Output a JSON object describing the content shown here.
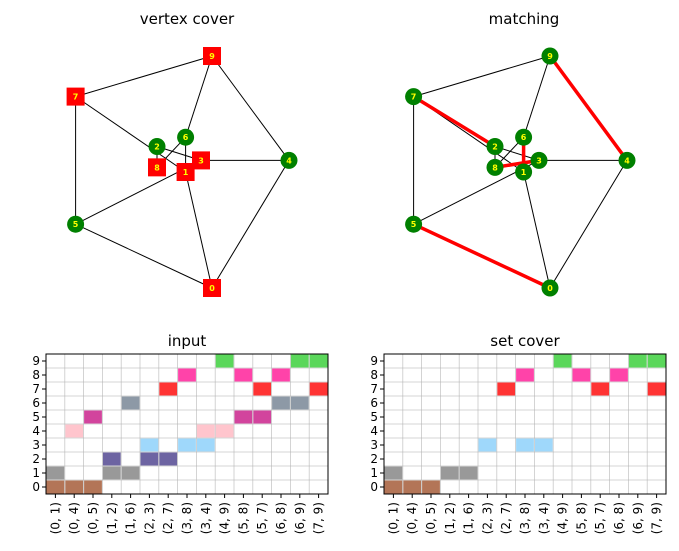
{
  "chart_data": [
    {
      "type": "graph",
      "title": "vertex cover",
      "nodes": [
        {
          "id": "0",
          "x": 0.0,
          "y": -1.0,
          "in_cover": true
        },
        {
          "id": "1",
          "x": -0.12,
          "y": 0.0,
          "in_cover": true
        },
        {
          "id": "2",
          "x": -0.25,
          "y": 0.22,
          "in_cover": false
        },
        {
          "id": "3",
          "x": -0.05,
          "y": 0.1,
          "in_cover": true
        },
        {
          "id": "4",
          "x": 0.35,
          "y": 0.1,
          "in_cover": false
        },
        {
          "id": "5",
          "x": -0.62,
          "y": -0.45,
          "in_cover": false
        },
        {
          "id": "6",
          "x": -0.12,
          "y": 0.3,
          "in_cover": false
        },
        {
          "id": "7",
          "x": -0.62,
          "y": 0.65,
          "in_cover": true
        },
        {
          "id": "8",
          "x": -0.25,
          "y": 0.04,
          "in_cover": true
        },
        {
          "id": "9",
          "x": 0.0,
          "y": 1.0,
          "in_cover": true
        }
      ],
      "edges": [
        [
          "9",
          "7"
        ],
        [
          "9",
          "6"
        ],
        [
          "9",
          "4"
        ],
        [
          "7",
          "5"
        ],
        [
          "7",
          "1"
        ],
        [
          "5",
          "0"
        ],
        [
          "5",
          "3"
        ],
        [
          "0",
          "4"
        ],
        [
          "0",
          "1"
        ],
        [
          "4",
          "3"
        ],
        [
          "2",
          "8"
        ],
        [
          "2",
          "3"
        ],
        [
          "6",
          "1"
        ],
        [
          "6",
          "8"
        ]
      ],
      "cover_color": "#ff0000",
      "other_color": "#008000",
      "label_color": "#ffff00"
    },
    {
      "type": "graph",
      "title": "matching",
      "nodes": [
        {
          "id": "0",
          "x": 0.0,
          "y": -1.0
        },
        {
          "id": "1",
          "x": -0.12,
          "y": 0.0
        },
        {
          "id": "2",
          "x": -0.25,
          "y": 0.22
        },
        {
          "id": "3",
          "x": -0.05,
          "y": 0.1
        },
        {
          "id": "4",
          "x": 0.35,
          "y": 0.1
        },
        {
          "id": "5",
          "x": -0.62,
          "y": -0.45
        },
        {
          "id": "6",
          "x": -0.12,
          "y": 0.3
        },
        {
          "id": "7",
          "x": -0.62,
          "y": 0.65
        },
        {
          "id": "8",
          "x": -0.25,
          "y": 0.04
        },
        {
          "id": "9",
          "x": 0.0,
          "y": 1.0
        }
      ],
      "edges": [
        [
          "9",
          "7"
        ],
        [
          "9",
          "6"
        ],
        [
          "9",
          "4"
        ],
        [
          "7",
          "5"
        ],
        [
          "7",
          "1"
        ],
        [
          "5",
          "0"
        ],
        [
          "5",
          "3"
        ],
        [
          "0",
          "4"
        ],
        [
          "0",
          "1"
        ],
        [
          "4",
          "3"
        ],
        [
          "2",
          "8"
        ],
        [
          "2",
          "3"
        ],
        [
          "6",
          "1"
        ],
        [
          "6",
          "8"
        ]
      ],
      "matching": [
        [
          "7",
          "2"
        ],
        [
          "9",
          "4"
        ],
        [
          "5",
          "0"
        ],
        [
          "8",
          "3"
        ],
        [
          "6",
          "1"
        ]
      ],
      "node_color": "#008000",
      "label_color": "#ffff00",
      "matching_color": "#ff0000"
    },
    {
      "type": "heatmap",
      "title": "input",
      "x_categories": [
        "(0, 1)",
        "(0, 4)",
        "(0, 5)",
        "(1, 2)",
        "(1, 6)",
        "(2, 3)",
        "(2, 7)",
        "(3, 8)",
        "(3, 4)",
        "(4, 9)",
        "(5, 8)",
        "(5, 7)",
        "(6, 8)",
        "(6, 9)",
        "(7, 9)"
      ],
      "y_categories": [
        "0",
        "1",
        "2",
        "3",
        "4",
        "5",
        "6",
        "7",
        "8",
        "9"
      ],
      "grid": true,
      "sets": [
        {
          "name": "0",
          "color": "#a0522d",
          "alpha": 0.8,
          "cells": [
            0,
            1,
            2
          ]
        },
        {
          "name": "1",
          "color": "#808080",
          "alpha": 0.8,
          "cells": [
            0,
            3,
            4
          ]
        },
        {
          "name": "2",
          "color": "#483d8b",
          "alpha": 0.8,
          "cells": [
            3,
            5,
            6
          ]
        },
        {
          "name": "3",
          "color": "#87cefa",
          "alpha": 0.8,
          "cells": [
            5,
            7,
            8
          ]
        },
        {
          "name": "4",
          "color": "#ffb6c1",
          "alpha": 0.8,
          "cells": [
            1,
            8,
            9
          ]
        },
        {
          "name": "5",
          "color": "#c71585",
          "alpha": 0.8,
          "cells": [
            2,
            10,
            11
          ]
        },
        {
          "name": "6",
          "color": "#708090",
          "alpha": 0.8,
          "cells": [
            4,
            12,
            13
          ]
        },
        {
          "name": "7",
          "color": "#ff0000",
          "alpha": 0.8,
          "cells": [
            6,
            11,
            14
          ]
        },
        {
          "name": "8",
          "color": "#ff1493",
          "alpha": 0.8,
          "cells": [
            7,
            10,
            12
          ]
        },
        {
          "name": "9",
          "color": "#32cd32",
          "alpha": 0.8,
          "cells": [
            9,
            13,
            14
          ]
        }
      ]
    },
    {
      "type": "heatmap",
      "title": "set cover",
      "x_categories": [
        "(0, 1)",
        "(0, 4)",
        "(0, 5)",
        "(1, 2)",
        "(1, 6)",
        "(2, 3)",
        "(2, 7)",
        "(3, 8)",
        "(3, 4)",
        "(4, 9)",
        "(5, 8)",
        "(5, 7)",
        "(6, 8)",
        "(6, 9)",
        "(7, 9)"
      ],
      "y_categories": [
        "0",
        "1",
        "2",
        "3",
        "4",
        "5",
        "6",
        "7",
        "8",
        "9"
      ],
      "grid": true,
      "sets": [
        {
          "name": "0",
          "color": "#a0522d",
          "alpha": 0.8,
          "cells": [
            0,
            1,
            2
          ]
        },
        {
          "name": "1",
          "color": "#808080",
          "alpha": 0.8,
          "cells": [
            0,
            3,
            4
          ]
        },
        {
          "name": "3",
          "color": "#87cefa",
          "alpha": 0.8,
          "cells": [
            5,
            7,
            8
          ]
        },
        {
          "name": "7",
          "color": "#ff0000",
          "alpha": 0.8,
          "cells": [
            6,
            11,
            14
          ]
        },
        {
          "name": "8",
          "color": "#ff1493",
          "alpha": 0.8,
          "cells": [
            7,
            10,
            12
          ]
        },
        {
          "name": "9",
          "color": "#32cd32",
          "alpha": 0.8,
          "cells": [
            9,
            13,
            14
          ]
        }
      ]
    }
  ]
}
